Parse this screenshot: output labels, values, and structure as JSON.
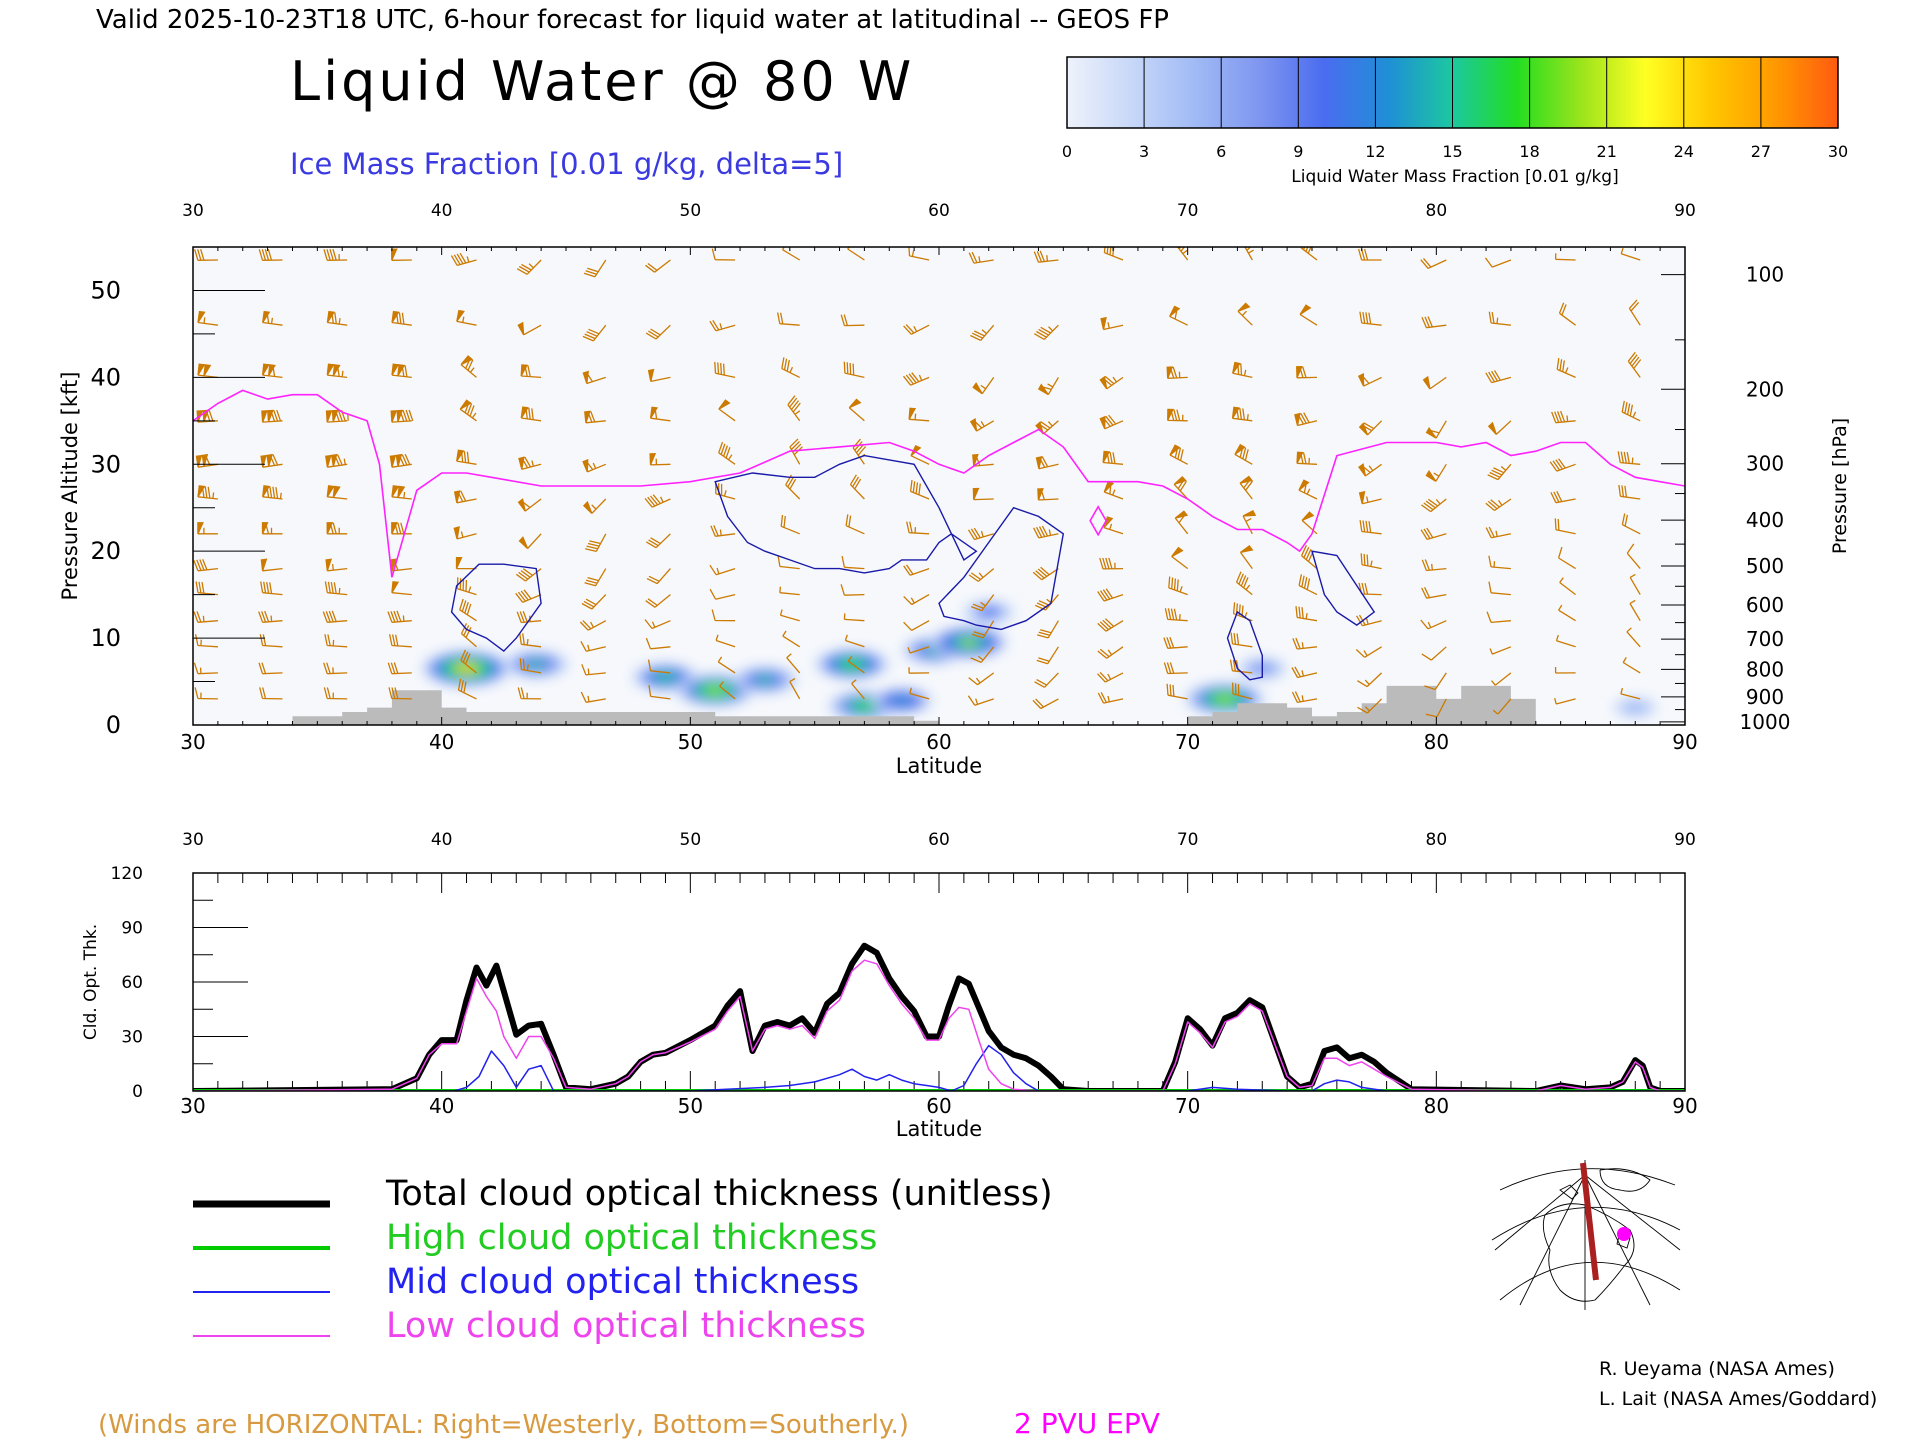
{
  "header": {
    "valid_line": "Valid 2025-10-23T18 UTC, 6-hour forecast for liquid water at latitudinal -- GEOS FP",
    "main_title": "Liquid Water @ 80 W",
    "subtitle": "Ice Mass Fraction [0.01 g/kg, delta=5]"
  },
  "colorbar": {
    "label": "Liquid Water Mass Fraction [0.01 g/kg]",
    "ticks": [
      "0",
      "3",
      "6",
      "9",
      "12",
      "15",
      "18",
      "21",
      "24",
      "27",
      "30"
    ],
    "colors": [
      "#eef2fb",
      "#c8d8f8",
      "#a0baf5",
      "#7f96f0",
      "#4a6cf0",
      "#1f8fd6",
      "#1cc8a0",
      "#22dd22",
      "#9be41c",
      "#ffff22",
      "#ffc800",
      "#ff9a00",
      "#ff5a10"
    ]
  },
  "colors": {
    "wind_barb": "#cc7a00",
    "epv_contour": "#ff22ff",
    "ice_contour": "#1a1aa8",
    "terrain": "#bbbbbb",
    "total": "#000000",
    "high": "#00cc00",
    "mid": "#2222ee",
    "low": "#ee44ee"
  },
  "upper_panel": {
    "xlabel": "Latitude",
    "ylabel_left": "Pressure Altitude [kft]",
    "ylabel_right": "Pressure [hPa]",
    "x_ticks": [
      "30",
      "40",
      "50",
      "60",
      "70",
      "80",
      "90"
    ],
    "y_ticks_left": [
      "0",
      "10",
      "20",
      "30",
      "40",
      "50"
    ],
    "y_ticks_right": [
      "100",
      "200",
      "300",
      "400",
      "500",
      "600",
      "700",
      "800",
      "900",
      "1000"
    ]
  },
  "lower_panel": {
    "xlabel": "Latitude",
    "ylabel": "Cld. Opt. Thk.",
    "x_ticks": [
      "30",
      "40",
      "50",
      "60",
      "70",
      "80",
      "90"
    ],
    "y_ticks": [
      "0",
      "30",
      "60",
      "90",
      "120"
    ]
  },
  "legend": {
    "total": "Total cloud optical thickness (unitless)",
    "high": "High cloud optical thickness",
    "mid": "Mid cloud optical thickness",
    "low": "Low cloud optical thickness"
  },
  "footer": {
    "winds_note": "(Winds are HORIZONTAL: Right=Westerly, Bottom=Southerly.)",
    "epv_label": "2 PVU EPV",
    "credit1": "R. Ueyama (NASA Ames)",
    "credit2": "L. Lait (NASA Ames/Goddard)"
  },
  "chart_data": [
    {
      "type": "heatmap",
      "title": "Liquid Water @ 80 W",
      "xlabel": "Latitude",
      "ylabel": "Pressure Altitude [kft]",
      "xlim": [
        30,
        90
      ],
      "ylim": [
        0,
        55
      ],
      "liquid_water_blobs": [
        {
          "lat": 41,
          "kft": 6.5,
          "value": 24
        },
        {
          "lat": 43.8,
          "kft": 7,
          "value": 14
        },
        {
          "lat": 49,
          "kft": 5.5,
          "value": 15
        },
        {
          "lat": 51,
          "kft": 4,
          "value": 20
        },
        {
          "lat": 53,
          "kft": 5.2,
          "value": 14
        },
        {
          "lat": 56.5,
          "kft": 7,
          "value": 18
        },
        {
          "lat": 57,
          "kft": 2.2,
          "value": 17
        },
        {
          "lat": 58.5,
          "kft": 2.8,
          "value": 13
        },
        {
          "lat": 59.8,
          "kft": 8.6,
          "value": 14
        },
        {
          "lat": 61.2,
          "kft": 9.5,
          "value": 19
        },
        {
          "lat": 62,
          "kft": 13,
          "value": 9
        },
        {
          "lat": 71.5,
          "kft": 3,
          "value": 20
        },
        {
          "lat": 73,
          "kft": 6.5,
          "value": 8
        },
        {
          "lat": 88,
          "kft": 2,
          "value": 6
        }
      ],
      "epv_2pvu_kft": {
        "lat": [
          30,
          31,
          32,
          33,
          34,
          35,
          36,
          37,
          37.5,
          38,
          39,
          40,
          41,
          42,
          44,
          46,
          48,
          50,
          52,
          54,
          56,
          58,
          59,
          60,
          61,
          62,
          63,
          64,
          65,
          66,
          67,
          68,
          69,
          70,
          71,
          72,
          73,
          74,
          74.5,
          75,
          76,
          78,
          80,
          81,
          82,
          83,
          84,
          85,
          86,
          87,
          88,
          89,
          90
        ],
        "kft": [
          35,
          37,
          38.5,
          37.5,
          38,
          38,
          36,
          35,
          30,
          17,
          27,
          29,
          29,
          28.5,
          27.5,
          27.5,
          27.5,
          28,
          29,
          31.5,
          32,
          32.5,
          31.5,
          30,
          29,
          31,
          32.5,
          34,
          32,
          28,
          28,
          28,
          27.5,
          26,
          24,
          22.5,
          22.5,
          21,
          20,
          22,
          31,
          32.5,
          32.5,
          32,
          32.5,
          31,
          31.5,
          32.5,
          32.5,
          30,
          28.5,
          28,
          27.5
        ]
      },
      "ice_contours": [
        {
          "lat": [
            41.5,
            42.5,
            43.8,
            44,
            43,
            42.5,
            41.8,
            41,
            40.4,
            40.6,
            41.5
          ],
          "kft": [
            18.5,
            18.5,
            18,
            14,
            10,
            8.5,
            10,
            11,
            13,
            16,
            18.5
          ]
        },
        {
          "lat": [
            51,
            52.5,
            54,
            55,
            56,
            57,
            58,
            59,
            60,
            61,
            61.5,
            60.5,
            60,
            59.5,
            58.5,
            58,
            57,
            56,
            55,
            54,
            53,
            52.3,
            51.5,
            51
          ],
          "kft": [
            28,
            29,
            28.5,
            28.5,
            30,
            31,
            30.5,
            30,
            25,
            19,
            20,
            22,
            21,
            19,
            19,
            18,
            17.5,
            18,
            18,
            19,
            20,
            21,
            24,
            28
          ]
        },
        {
          "lat": [
            60,
            61,
            62,
            63,
            64,
            65,
            64.5,
            63.5,
            62.5,
            61.5,
            61,
            60.2,
            60
          ],
          "kft": [
            14,
            17,
            21,
            25,
            24,
            22,
            14,
            12,
            11,
            11.5,
            12,
            12.5,
            14
          ]
        },
        {
          "lat": [
            75,
            76,
            77.5,
            76.8,
            76,
            75.5,
            75
          ],
          "kft": [
            20,
            19.5,
            13,
            11.5,
            13,
            15,
            20
          ]
        },
        {
          "lat": [
            72,
            72.5,
            73,
            73,
            72.5,
            72,
            71.6,
            72
          ],
          "kft": [
            13,
            12,
            8,
            5.5,
            5.2,
            6.5,
            10,
            13
          ]
        }
      ],
      "terrain_kft": {
        "lat": [
          34,
          35,
          36,
          37,
          38,
          39,
          40,
          41,
          42,
          43,
          44,
          45,
          46,
          47,
          48,
          49,
          50,
          51,
          52,
          53,
          54,
          55,
          56,
          57,
          58,
          59,
          60,
          61,
          62,
          63,
          64,
          65,
          66,
          67,
          68,
          69,
          70,
          71,
          72,
          73,
          74,
          75,
          76,
          77,
          78,
          79,
          80,
          81,
          82,
          83,
          84
        ],
        "kft": [
          1,
          1,
          1.5,
          2,
          4,
          4,
          2,
          1.5,
          1.5,
          1.5,
          1.5,
          1.5,
          1.5,
          1.5,
          1.5,
          1.5,
          1.5,
          1,
          1,
          1,
          1,
          1,
          1,
          1,
          1,
          0.5,
          0,
          0,
          0,
          0,
          0,
          0,
          0,
          0,
          0,
          0,
          1,
          1.5,
          2.5,
          2.5,
          2,
          1,
          1.5,
          2.5,
          4.5,
          4.5,
          3,
          4.5,
          4.5,
          3,
          0
        ]
      }
    },
    {
      "type": "line",
      "xlabel": "Latitude",
      "ylabel": "Cld. Opt. Thk.",
      "xlim": [
        30,
        90
      ],
      "ylim": [
        0,
        120
      ],
      "series": [
        {
          "name": "Total cloud optical thickness (unitless)",
          "x": [
            30,
            38,
            39,
            39.5,
            40,
            40.6,
            41,
            41.4,
            41.8,
            42.2,
            42.5,
            43,
            43.5,
            44,
            44.5,
            45,
            46,
            47,
            47.5,
            48,
            48.5,
            49,
            50,
            51,
            51.5,
            52,
            52.5,
            53,
            53.5,
            54,
            54.5,
            55,
            55.5,
            56,
            56.5,
            57,
            57.5,
            58,
            58.5,
            59,
            59.5,
            60,
            60.4,
            60.8,
            61.2,
            61.6,
            62,
            62.5,
            63,
            63.5,
            64,
            64.5,
            65,
            66,
            69,
            69.5,
            70,
            70.5,
            71,
            71.5,
            72,
            72.5,
            73,
            73.5,
            74,
            74.5,
            75,
            75.5,
            76,
            76.5,
            77,
            77.5,
            78,
            79,
            84,
            85,
            86,
            87,
            87.5,
            88,
            88.3,
            88.6,
            89,
            90
          ],
          "y": [
            0,
            1,
            7,
            20,
            28,
            28,
            50,
            68,
            58,
            69,
            55,
            31,
            36,
            37,
            20,
            2,
            1,
            4,
            8,
            16,
            20,
            21,
            28,
            36,
            47,
            55,
            22,
            36,
            38,
            36,
            40,
            32,
            48,
            54,
            70,
            80,
            76,
            62,
            52,
            44,
            30,
            30,
            47,
            62,
            59,
            46,
            33,
            24,
            20,
            18,
            14,
            8,
            1,
            0,
            0,
            16,
            40,
            34,
            25,
            40,
            43,
            50,
            46,
            27,
            8,
            2,
            4,
            22,
            24,
            18,
            20,
            16,
            10,
            1,
            0,
            3,
            1,
            2,
            5,
            17,
            14,
            2,
            0,
            0
          ]
        },
        {
          "name": "High cloud optical thickness",
          "x": [
            30,
            90
          ],
          "y": [
            0,
            0
          ]
        },
        {
          "name": "Mid cloud optical thickness",
          "x": [
            30,
            40.5,
            41,
            41.5,
            42,
            42.5,
            43,
            43.5,
            44,
            44.5,
            50,
            53,
            54,
            55,
            56,
            56.5,
            57,
            57.5,
            58,
            58.5,
            59,
            59.5,
            60,
            60.5,
            61,
            61.5,
            62,
            62.5,
            63,
            63.5,
            64,
            70,
            71,
            72,
            74,
            75,
            75.5,
            76,
            76.5,
            77,
            78,
            90
          ],
          "y": [
            0,
            0,
            2,
            8,
            22,
            14,
            2,
            12,
            14,
            0,
            0,
            2,
            3,
            5,
            9,
            12,
            8,
            6,
            9,
            6,
            4,
            3,
            2,
            0,
            3,
            15,
            25,
            20,
            10,
            4,
            0,
            0,
            2,
            1,
            0,
            0,
            4,
            6,
            5,
            2,
            0,
            0
          ]
        },
        {
          "name": "Low cloud optical thickness",
          "x": [
            30,
            38,
            39,
            39.5,
            40,
            40.6,
            41,
            41.4,
            41.8,
            42.2,
            42.5,
            43,
            43.5,
            44,
            44.5,
            45,
            46,
            47,
            47.5,
            48,
            48.5,
            49,
            50,
            51,
            51.5,
            52,
            52.5,
            53,
            53.5,
            54,
            54.5,
            55,
            55.5,
            56,
            56.5,
            57,
            57.5,
            58,
            58.5,
            59,
            59.5,
            60,
            60.4,
            60.8,
            61.2,
            61.6,
            62,
            62.5,
            63,
            64,
            69,
            69.5,
            70,
            70.5,
            71,
            71.5,
            72,
            72.5,
            73,
            73.5,
            74,
            74.5,
            75,
            75.5,
            76,
            76.5,
            77,
            77.5,
            78,
            79,
            84,
            85,
            86,
            87,
            87.5,
            88,
            88.3,
            88.6,
            89,
            90
          ],
          "y": [
            0,
            1,
            7,
            20,
            26,
            26,
            44,
            62,
            52,
            44,
            30,
            18,
            30,
            30,
            18,
            2,
            1,
            4,
            8,
            16,
            20,
            21,
            27,
            34,
            44,
            52,
            22,
            34,
            36,
            34,
            36,
            29,
            44,
            50,
            66,
            72,
            70,
            58,
            48,
            40,
            28,
            28,
            40,
            46,
            45,
            28,
            12,
            4,
            1,
            0,
            0,
            15,
            38,
            32,
            24,
            38,
            41,
            48,
            44,
            26,
            8,
            2,
            3,
            18,
            18,
            14,
            16,
            12,
            8,
            1,
            0,
            3,
            1,
            2,
            5,
            16,
            13,
            2,
            0,
            0
          ]
        }
      ]
    }
  ]
}
